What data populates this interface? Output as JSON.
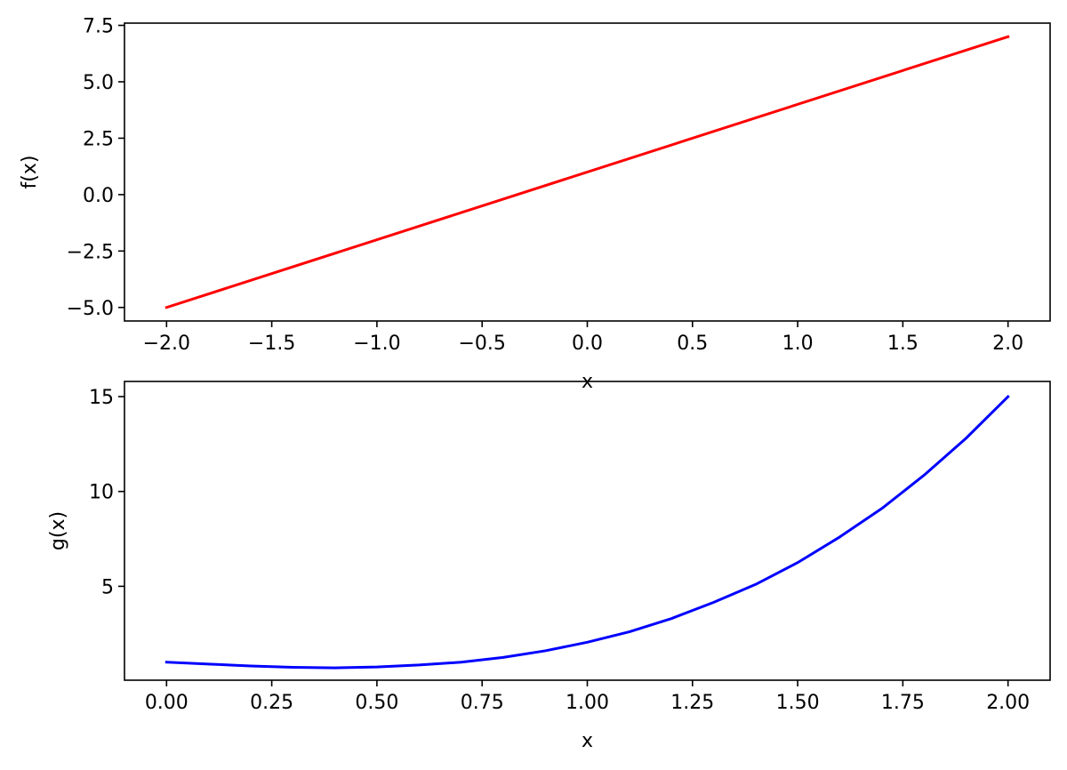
{
  "chart_data": [
    {
      "type": "line",
      "xlabel": "x",
      "ylabel": "f(x)",
      "xlim": [
        -2.2,
        2.2
      ],
      "ylim": [
        -5.6,
        7.6
      ],
      "grid": false,
      "xticks": [
        {
          "value": -2.0,
          "label": "−2.0"
        },
        {
          "value": -1.5,
          "label": "−1.5"
        },
        {
          "value": -1.0,
          "label": "−1.0"
        },
        {
          "value": -0.5,
          "label": "−0.5"
        },
        {
          "value": 0.0,
          "label": "0.0"
        },
        {
          "value": 0.5,
          "label": "0.5"
        },
        {
          "value": 1.0,
          "label": "1.0"
        },
        {
          "value": 1.5,
          "label": "1.5"
        },
        {
          "value": 2.0,
          "label": "2.0"
        }
      ],
      "yticks": [
        {
          "value": -5.0,
          "label": "−5.0"
        },
        {
          "value": -2.5,
          "label": "−2.5"
        },
        {
          "value": 0.0,
          "label": "0.0"
        },
        {
          "value": 2.5,
          "label": "2.5"
        },
        {
          "value": 5.0,
          "label": "5.0"
        },
        {
          "value": 7.5,
          "label": "7.5"
        }
      ],
      "series": [
        {
          "color": "#ff0000",
          "x": [
            -2.0,
            2.0
          ],
          "y": [
            -5.0,
            7.0
          ]
        }
      ]
    },
    {
      "type": "line",
      "xlabel": "x",
      "ylabel": "g(x)",
      "xlim": [
        -0.1,
        2.1
      ],
      "ylim": [
        0.05,
        15.8
      ],
      "grid": false,
      "xticks": [
        {
          "value": 0.0,
          "label": "0.00"
        },
        {
          "value": 0.25,
          "label": "0.25"
        },
        {
          "value": 0.5,
          "label": "0.50"
        },
        {
          "value": 0.75,
          "label": "0.75"
        },
        {
          "value": 1.0,
          "label": "1.00"
        },
        {
          "value": 1.25,
          "label": "1.25"
        },
        {
          "value": 1.5,
          "label": "1.50"
        },
        {
          "value": 1.75,
          "label": "1.75"
        },
        {
          "value": 2.0,
          "label": "2.00"
        }
      ],
      "yticks": [
        {
          "value": 5,
          "label": "5"
        },
        {
          "value": 10,
          "label": "10"
        },
        {
          "value": 15,
          "label": "15"
        }
      ],
      "series": [
        {
          "color": "#0000ff",
          "x": [
            0.0,
            0.1,
            0.2,
            0.3,
            0.4,
            0.5,
            0.6,
            0.7,
            0.8,
            0.9,
            1.0,
            1.1,
            1.2,
            1.3,
            1.4,
            1.5,
            1.6,
            1.7,
            1.8,
            1.9,
            2.0
          ],
          "y": [
            1.0,
            0.9,
            0.8,
            0.73,
            0.7,
            0.75,
            0.85,
            1.0,
            1.25,
            1.6,
            2.05,
            2.6,
            3.3,
            4.15,
            5.1,
            6.25,
            7.6,
            9.1,
            10.85,
            12.8,
            15.0
          ]
        }
      ]
    }
  ]
}
